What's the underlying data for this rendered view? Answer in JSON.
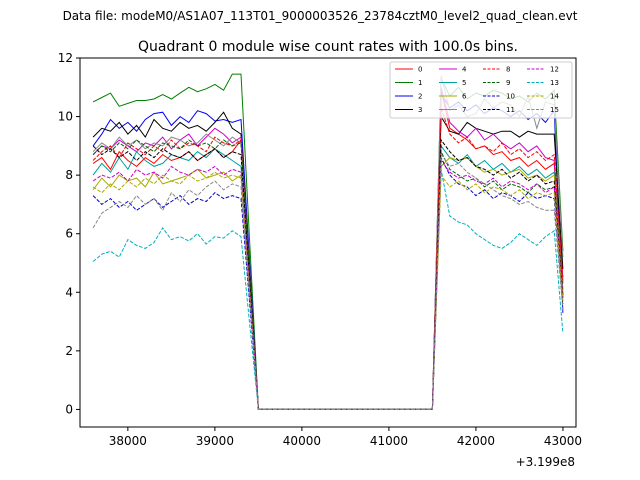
{
  "chart_data": {
    "type": "line",
    "suptitle": "Data file: modeM0/AS1A07_113T01_9000003526_23784cztM0_level2_quad_clean.evt",
    "title": "Quadrant 0 module wise count rates with 100.0s bins.",
    "xlabel": "",
    "ylabel": "",
    "x_offset_label": "+3.199e8",
    "xlim": [
      37450,
      43150
    ],
    "ylim": [
      -0.6,
      12.0
    ],
    "x_ticks": [
      38000,
      39000,
      40000,
      41000,
      42000,
      43000
    ],
    "y_ticks": [
      0,
      2,
      4,
      6,
      8,
      10,
      12
    ],
    "legend_position": "top-right",
    "x": [
      37600,
      37700,
      37800,
      37900,
      38000,
      38100,
      38200,
      38300,
      38400,
      38500,
      38600,
      38700,
      38800,
      38900,
      39000,
      39100,
      39200,
      39300,
      39400,
      39500,
      39600,
      39700,
      39800,
      39900,
      40000,
      40100,
      40200,
      40300,
      40400,
      40500,
      40600,
      40700,
      40800,
      40900,
      41000,
      41100,
      41200,
      41300,
      41400,
      41500,
      41600,
      41700,
      41800,
      41900,
      42000,
      42100,
      42200,
      42300,
      42400,
      42500,
      42600,
      42700,
      42800,
      42900,
      43000
    ],
    "series": [
      {
        "name": "0",
        "color": "#ff0000",
        "dash": "solid",
        "values": [
          8.4,
          8.6,
          8.2,
          8.8,
          8.5,
          8.3,
          8.6,
          8.4,
          8.7,
          8.5,
          8.6,
          8.8,
          8.5,
          8.7,
          8.9,
          8.6,
          8.8,
          9.2,
          4.6,
          0,
          0,
          0,
          0,
          0,
          0,
          0,
          0,
          0,
          0,
          0,
          0,
          0,
          0,
          0,
          0,
          0,
          0,
          0,
          0,
          0,
          10.9,
          9.6,
          9.4,
          9.2,
          8.9,
          9.0,
          8.7,
          8.8,
          8.5,
          8.6,
          8.3,
          8.5,
          8.2,
          8.4,
          4.5
        ]
      },
      {
        "name": "1",
        "color": "#008000",
        "dash": "solid",
        "values": [
          10.5,
          10.65,
          10.8,
          10.35,
          10.45,
          10.55,
          10.55,
          10.6,
          10.75,
          10.6,
          10.8,
          11.0,
          10.85,
          10.95,
          11.1,
          10.9,
          11.45,
          11.45,
          5.7,
          0,
          0,
          0,
          0,
          0,
          0,
          0,
          0,
          0,
          0,
          0,
          0,
          0,
          0,
          0,
          0,
          0,
          0,
          0,
          0,
          0,
          11.3,
          10.7,
          11.0,
          10.6,
          10.8,
          10.7,
          10.9,
          10.8,
          10.6,
          10.7,
          10.5,
          10.8,
          10.6,
          10.9,
          5.4
        ]
      },
      {
        "name": "2",
        "color": "#0000ff",
        "dash": "solid",
        "values": [
          9.0,
          9.4,
          9.9,
          9.6,
          9.8,
          9.5,
          9.9,
          10.1,
          10.15,
          9.7,
          10.0,
          9.8,
          10.2,
          10.1,
          9.85,
          9.9,
          9.8,
          9.9,
          5.0,
          0,
          0,
          0,
          0,
          0,
          0,
          0,
          0,
          0,
          0,
          0,
          0,
          0,
          0,
          0,
          0,
          0,
          0,
          0,
          0,
          0,
          10.8,
          10.3,
          10.5,
          10.2,
          10.4,
          10.1,
          10.3,
          10.2,
          10.0,
          10.2,
          9.9,
          10.1,
          9.8,
          10.2,
          3.3
        ]
      },
      {
        "name": "3",
        "color": "#000000",
        "dash": "solid",
        "values": [
          9.3,
          9.6,
          9.5,
          9.8,
          9.4,
          9.7,
          9.3,
          9.9,
          9.6,
          9.5,
          9.8,
          9.6,
          9.7,
          9.5,
          9.8,
          10.15,
          9.6,
          9.4,
          4.7,
          0,
          0,
          0,
          0,
          0,
          0,
          0,
          0,
          0,
          0,
          0,
          0,
          0,
          0,
          0,
          0,
          0,
          0,
          0,
          0,
          0,
          10.0,
          9.5,
          9.4,
          9.8,
          9.6,
          9.5,
          9.4,
          9.5,
          9.5,
          9.3,
          9.5,
          9.4,
          9.4,
          9.4,
          4.8
        ]
      },
      {
        "name": "4",
        "color": "#cc00cc",
        "dash": "solid",
        "values": [
          8.7,
          9.0,
          8.9,
          9.2,
          9.0,
          8.8,
          9.1,
          9.0,
          9.3,
          8.9,
          9.2,
          9.4,
          9.0,
          9.3,
          9.6,
          9.4,
          9.1,
          9.3,
          4.6,
          0,
          0,
          0,
          0,
          0,
          0,
          0,
          0,
          0,
          0,
          0,
          0,
          0,
          0,
          0,
          0,
          0,
          0,
          0,
          0,
          0,
          11.0,
          9.8,
          9.5,
          9.3,
          9.6,
          9.2,
          9.4,
          9.1,
          8.9,
          9.1,
          8.8,
          9.0,
          8.6,
          8.5,
          4.3
        ]
      },
      {
        "name": "5",
        "color": "#00a0a0",
        "dash": "solid",
        "values": [
          8.0,
          8.4,
          8.1,
          8.6,
          8.2,
          8.8,
          8.5,
          8.3,
          8.4,
          8.7,
          8.6,
          8.5,
          8.8,
          8.6,
          8.9,
          8.7,
          8.5,
          8.3,
          4.2,
          0,
          0,
          0,
          0,
          0,
          0,
          0,
          0,
          0,
          0,
          0,
          0,
          0,
          0,
          0,
          0,
          0,
          0,
          0,
          0,
          0,
          9.0,
          8.6,
          8.4,
          8.7,
          8.3,
          8.5,
          8.2,
          8.4,
          8.1,
          8.3,
          8.0,
          8.2,
          7.9,
          8.1,
          4.1
        ]
      },
      {
        "name": "6",
        "color": "#aaaa00",
        "dash": "solid",
        "values": [
          7.5,
          7.9,
          7.6,
          8.0,
          7.8,
          7.9,
          7.6,
          8.1,
          7.7,
          7.8,
          7.9,
          8.0,
          8.2,
          7.9,
          8.0,
          8.1,
          7.8,
          8.0,
          4.0,
          0,
          0,
          0,
          0,
          0,
          0,
          0,
          0,
          0,
          0,
          0,
          0,
          0,
          0,
          0,
          0,
          0,
          0,
          0,
          0,
          0,
          8.3,
          8.6,
          8.5,
          8.6,
          8.3,
          8.1,
          8.2,
          8.0,
          8.1,
          8.2,
          7.9,
          8.0,
          7.8,
          8.0,
          4.0
        ]
      },
      {
        "name": "7",
        "color": "#888888",
        "dash": "solid",
        "values": [
          8.8,
          9.1,
          8.9,
          9.3,
          9.0,
          9.2,
          8.9,
          9.1,
          9.0,
          9.3,
          9.2,
          9.0,
          9.1,
          9.4,
          9.2,
          9.0,
          9.3,
          9.1,
          4.6,
          0,
          0,
          0,
          0,
          0,
          0,
          0,
          0,
          0,
          0,
          0,
          0,
          0,
          0,
          0,
          0,
          0,
          0,
          0,
          0,
          0,
          11.4,
          10.2,
          10.4,
          10.0,
          10.1,
          10.6,
          10.3,
          10.5,
          10.4,
          10.0,
          10.7,
          9.6,
          10.5,
          10.4,
          5.2
        ]
      },
      {
        "name": "8",
        "color": "#ff0000",
        "dash": "dashed",
        "values": [
          8.5,
          8.8,
          9.0,
          8.6,
          9.1,
          8.9,
          8.7,
          9.0,
          8.8,
          9.2,
          8.9,
          9.1,
          9.0,
          8.8,
          9.3,
          9.1,
          9.0,
          9.2,
          4.6,
          0,
          0,
          0,
          0,
          0,
          0,
          0,
          0,
          0,
          0,
          0,
          0,
          0,
          0,
          0,
          0,
          0,
          0,
          0,
          0,
          0,
          10.3,
          9.4,
          9.1,
          9.3,
          8.9,
          9.0,
          8.8,
          9.1,
          8.7,
          8.9,
          8.6,
          8.8,
          8.5,
          8.7,
          4.4
        ]
      },
      {
        "name": "9",
        "color": "#006400",
        "dash": "dashed",
        "values": [
          8.7,
          9.0,
          8.8,
          9.1,
          8.9,
          9.2,
          9.0,
          8.8,
          9.1,
          9.0,
          8.9,
          9.2,
          9.0,
          9.1,
          8.9,
          9.2,
          9.0,
          9.1,
          4.6,
          0,
          0,
          0,
          0,
          0,
          0,
          0,
          0,
          0,
          0,
          0,
          0,
          0,
          0,
          0,
          0,
          0,
          0,
          0,
          0,
          0,
          8.8,
          8.2,
          8.0,
          7.8,
          7.9,
          7.6,
          7.8,
          7.5,
          7.7,
          7.6,
          7.4,
          7.7,
          7.5,
          7.6,
          3.8
        ]
      },
      {
        "name": "10",
        "color": "#0000cc",
        "dash": "dashed",
        "values": [
          7.3,
          7.0,
          7.2,
          6.9,
          7.1,
          6.8,
          7.0,
          7.2,
          6.9,
          7.1,
          7.3,
          7.0,
          7.2,
          7.1,
          7.4,
          7.2,
          7.3,
          7.2,
          3.6,
          0,
          0,
          0,
          0,
          0,
          0,
          0,
          0,
          0,
          0,
          0,
          0,
          0,
          0,
          0,
          0,
          0,
          0,
          0,
          0,
          0,
          8.6,
          8.0,
          7.7,
          7.6,
          7.3,
          7.5,
          7.2,
          7.4,
          7.3,
          7.1,
          7.4,
          7.2,
          7.3,
          7.2,
          3.6
        ]
      },
      {
        "name": "11",
        "color": "#000000",
        "dash": "dashed",
        "values": [
          9.0,
          8.7,
          8.9,
          8.6,
          8.8,
          8.5,
          8.8,
          8.6,
          8.9,
          8.7,
          8.6,
          8.8,
          8.5,
          8.7,
          8.9,
          8.6,
          8.8,
          8.7,
          4.4,
          0,
          0,
          0,
          0,
          0,
          0,
          0,
          0,
          0,
          0,
          0,
          0,
          0,
          0,
          0,
          0,
          0,
          0,
          0,
          0,
          0,
          9.2,
          8.8,
          8.5,
          8.6,
          8.3,
          8.2,
          8.0,
          8.2,
          7.9,
          8.1,
          7.8,
          8.0,
          7.7,
          7.8,
          3.9
        ]
      },
      {
        "name": "12",
        "color": "#cc00cc",
        "dash": "dashed",
        "values": [
          7.8,
          8.0,
          7.9,
          8.1,
          7.8,
          8.2,
          8.0,
          8.1,
          7.9,
          8.3,
          8.1,
          8.0,
          8.2,
          8.1,
          8.3,
          8.0,
          8.2,
          8.1,
          4.1,
          0,
          0,
          0,
          0,
          0,
          0,
          0,
          0,
          0,
          0,
          0,
          0,
          0,
          0,
          0,
          0,
          0,
          0,
          0,
          0,
          0,
          8.5,
          8.1,
          7.9,
          8.0,
          7.8,
          7.7,
          7.9,
          7.6,
          7.8,
          7.7,
          7.5,
          7.7,
          7.4,
          7.6,
          3.8
        ]
      },
      {
        "name": "13",
        "color": "#00b0c0",
        "dash": "dashed",
        "values": [
          5.05,
          5.3,
          5.4,
          5.2,
          5.8,
          5.6,
          5.5,
          5.7,
          6.2,
          5.8,
          5.9,
          5.75,
          6.0,
          5.65,
          5.9,
          5.85,
          6.1,
          5.9,
          2.9,
          0,
          0,
          0,
          0,
          0,
          0,
          0,
          0,
          0,
          0,
          0,
          0,
          0,
          0,
          0,
          0,
          0,
          0,
          0,
          0,
          0,
          8.2,
          6.6,
          6.4,
          6.3,
          6.0,
          5.8,
          5.6,
          5.5,
          5.7,
          6.0,
          5.8,
          5.6,
          5.9,
          6.1,
          2.6
        ]
      },
      {
        "name": "14",
        "color": "#aaaa00",
        "dash": "dashed",
        "values": [
          7.6,
          7.4,
          7.7,
          7.5,
          7.8,
          7.6,
          7.9,
          7.7,
          8.0,
          7.8,
          7.7,
          8.0,
          7.8,
          7.9,
          8.1,
          7.9,
          8.0,
          7.9,
          4.0,
          0,
          0,
          0,
          0,
          0,
          0,
          0,
          0,
          0,
          0,
          0,
          0,
          0,
          0,
          0,
          0,
          0,
          0,
          0,
          0,
          0,
          8.0,
          7.6,
          7.8,
          7.5,
          7.7,
          7.4,
          7.6,
          7.5,
          7.3,
          7.5,
          7.2,
          7.4,
          7.3,
          7.4,
          3.7
        ]
      },
      {
        "name": "15",
        "color": "#888888",
        "dash": "dashed",
        "values": [
          6.2,
          6.7,
          6.9,
          7.1,
          6.9,
          7.3,
          7.0,
          7.2,
          6.8,
          7.4,
          7.1,
          7.5,
          7.3,
          7.6,
          7.8,
          7.5,
          7.7,
          7.6,
          3.8,
          0,
          0,
          0,
          0,
          0,
          0,
          0,
          0,
          0,
          0,
          0,
          0,
          0,
          0,
          0,
          0,
          0,
          0,
          0,
          0,
          0,
          8.7,
          8.3,
          8.4,
          8.1,
          7.9,
          7.7,
          7.5,
          7.3,
          7.2,
          7.0,
          7.1,
          6.9,
          6.8,
          6.8,
          3.4
        ]
      }
    ]
  }
}
